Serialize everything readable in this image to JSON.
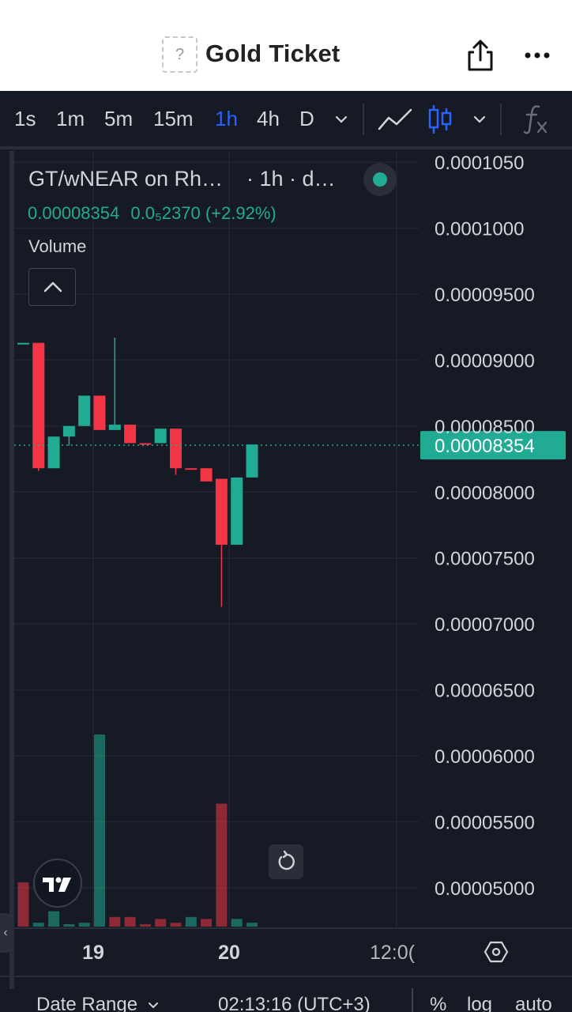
{
  "header": {
    "token_icon": "?",
    "title": "Gold Ticket",
    "share_icon": "share-icon",
    "more_icon": "more-icon"
  },
  "toolbar": {
    "timeframes": [
      "1s",
      "1m",
      "5m",
      "15m",
      "1h",
      "4h",
      "D"
    ],
    "active_timeframe": "1h",
    "icons": [
      "chevron-down-icon",
      "line-chart-icon",
      "candlestick-icon",
      "chevron-down-icon",
      "function-icon"
    ]
  },
  "legend": {
    "symbol": "GT/wNEAR on Rh…",
    "interval": "· 1h · d…",
    "last_price": "0.00008354",
    "change": "0.0₅2370 (+2.92%)",
    "volume_label": "Volume"
  },
  "colors": {
    "background": "#161a25",
    "up": "#22ab94",
    "down": "#f23645",
    "grid": "#222633",
    "text": "#d1d4dc",
    "accent": "#2962ff"
  },
  "chart_data": {
    "type": "candlestick",
    "price_axis": {
      "ticks": [
        "0.0001050",
        "0.0001000",
        "0.00009500",
        "0.00009000",
        "0.00008500",
        "0.00008000",
        "0.00007500",
        "0.00007000",
        "0.00006500",
        "0.00006000",
        "0.00005500",
        "0.00005000"
      ],
      "range": [
        4.76e-05,
        0.0001064
      ],
      "last_price": 8.354e-05,
      "last_price_label": "0.00008354"
    },
    "time_axis": {
      "labels": [
        "19",
        "20",
        "12:0("
      ]
    },
    "candles": [
      {
        "o": 9.13e-05,
        "h": 9.13e-05,
        "l": 9.13e-05,
        "c": 9.13e-05
      },
      {
        "o": 9.13e-05,
        "h": 9.13e-05,
        "l": 8.16e-05,
        "c": 8.18e-05
      },
      {
        "o": 8.18e-05,
        "h": 8.42e-05,
        "l": 8.18e-05,
        "c": 8.42e-05
      },
      {
        "o": 8.42e-05,
        "h": 8.5e-05,
        "l": 8.35e-05,
        "c": 8.5e-05
      },
      {
        "o": 8.5e-05,
        "h": 8.73e-05,
        "l": 8.5e-05,
        "c": 8.73e-05
      },
      {
        "o": 8.73e-05,
        "h": 8.73e-05,
        "l": 8.47e-05,
        "c": 8.47e-05
      },
      {
        "o": 8.47e-05,
        "h": 9.17e-05,
        "l": 8.47e-05,
        "c": 8.51e-05
      },
      {
        "o": 8.51e-05,
        "h": 8.51e-05,
        "l": 8.37e-05,
        "c": 8.37e-05
      },
      {
        "o": 8.37e-05,
        "h": 8.37e-05,
        "l": 8.36e-05,
        "c": 8.36e-05
      },
      {
        "o": 8.37e-05,
        "h": 8.48e-05,
        "l": 8.37e-05,
        "c": 8.48e-05
      },
      {
        "o": 8.48e-05,
        "h": 8.48e-05,
        "l": 8.13e-05,
        "c": 8.18e-05
      },
      {
        "o": 8.18e-05,
        "h": 8.18e-05,
        "l": 8.17e-05,
        "c": 8.17e-05
      },
      {
        "o": 8.18e-05,
        "h": 8.18e-05,
        "l": 8.08e-05,
        "c": 8.08e-05
      },
      {
        "o": 8.1e-05,
        "h": 8.1e-05,
        "l": 7.13e-05,
        "c": 7.6e-05
      },
      {
        "o": 7.6e-05,
        "h": 8.11e-05,
        "l": 7.6e-05,
        "c": 8.11e-05
      },
      {
        "o": 8.11e-05,
        "h": 8.36e-05,
        "l": 8.11e-05,
        "c": 8.36e-05
      }
    ],
    "volume": {
      "values": [
        0.23,
        0.02,
        0.08,
        0.01,
        0.02,
        1.0,
        0.05,
        0.05,
        0.01,
        0.04,
        0.02,
        0.05,
        0.04,
        0.64,
        0.04,
        0.02
      ],
      "directions": [
        "down",
        "up",
        "up",
        "up",
        "up",
        "up",
        "down",
        "down",
        "down",
        "down",
        "down",
        "up",
        "down",
        "down",
        "up",
        "up"
      ]
    }
  },
  "bottom_bar": {
    "date_range": "Date Range",
    "time": "02:13:16 (UTC+3)",
    "percent": "%",
    "log": "log",
    "auto": "auto"
  }
}
